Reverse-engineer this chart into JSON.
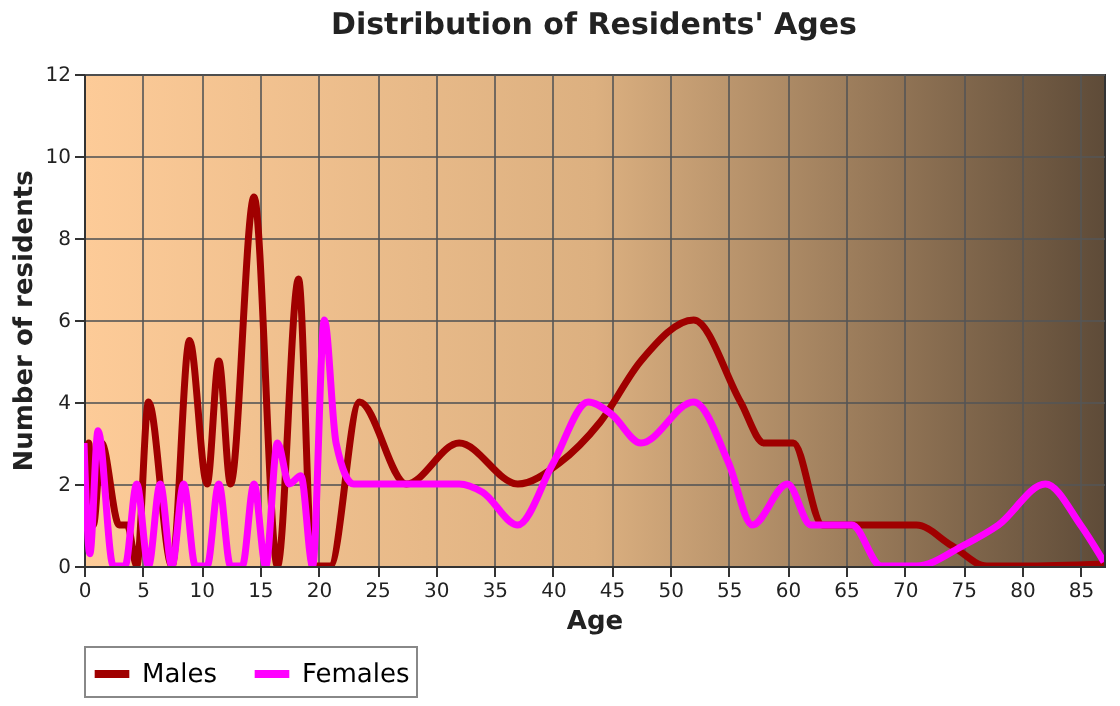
{
  "chart_data": {
    "type": "line",
    "title": "Distribution of Residents' Ages",
    "xlabel": "Age",
    "ylabel": "Number of residents",
    "xlim": [
      0,
      87
    ],
    "xticks": [
      0,
      5,
      10,
      15,
      20,
      25,
      30,
      35,
      40,
      45,
      50,
      55,
      60,
      65,
      70,
      75,
      80,
      85
    ],
    "ylim": [
      0,
      12
    ],
    "yticks": [
      0,
      2,
      4,
      6,
      8,
      10,
      12
    ],
    "grid": true,
    "legend": "bottom",
    "marker": "none",
    "line_style": "solid",
    "series": [
      {
        "name": "Males",
        "color": "#a00000",
        "x": [
          0,
          0.4,
          0.8,
          1.5,
          3,
          3.7,
          4.5,
          5.5,
          7.5,
          9,
          10.5,
          11.5,
          12.5,
          14.5,
          16.5,
          18.3,
          19.5,
          21,
          23.5,
          27.5,
          32,
          37,
          40.5,
          44,
          47.5,
          52,
          56,
          58,
          60.5,
          63,
          66,
          71,
          74,
          77,
          80,
          87
        ],
        "values": [
          1,
          3,
          1,
          3,
          1,
          1,
          0,
          4,
          0,
          5.5,
          2,
          5,
          2,
          9,
          0,
          7,
          0,
          0,
          4,
          2,
          3,
          2,
          2.5,
          3.5,
          5,
          6,
          4,
          3,
          3,
          1,
          1,
          1,
          0.5,
          0,
          0,
          0.05
        ]
      },
      {
        "name": "Females",
        "color": "#ff00ff",
        "x": [
          0,
          0.5,
          1.2,
          2.5,
          3.5,
          4.5,
          5.5,
          6.5,
          7.5,
          8.5,
          9.5,
          10.5,
          11.5,
          12.5,
          13.5,
          14.5,
          15.5,
          16.5,
          17.5,
          18.5,
          19.5,
          20.5,
          21.5,
          23,
          27,
          32,
          34,
          37,
          40,
          43,
          45,
          47.5,
          52,
          55,
          57,
          60,
          62,
          64,
          65.5,
          68,
          71,
          75,
          78,
          82,
          85,
          87
        ],
        "values": [
          3,
          0.3,
          3.3,
          0,
          0,
          2,
          0,
          2,
          0,
          2,
          0,
          0,
          2,
          0,
          0,
          2,
          0,
          3,
          2,
          2.2,
          0,
          6,
          3,
          2,
          2,
          2,
          1.8,
          1,
          2.5,
          4,
          3.7,
          3,
          4,
          2.5,
          1,
          2,
          1,
          1,
          1,
          0,
          0,
          0.5,
          1,
          2,
          1,
          0.1
        ]
      }
    ]
  }
}
